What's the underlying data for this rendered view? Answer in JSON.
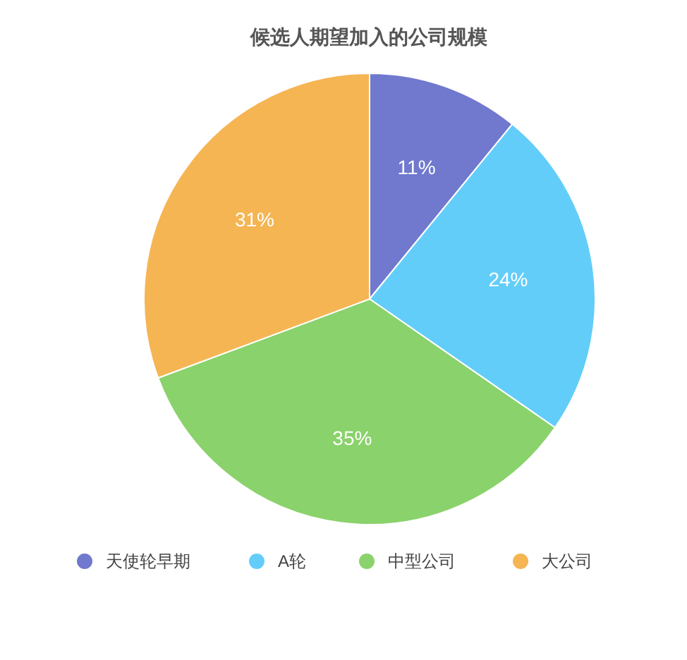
{
  "chart_data": {
    "type": "pie",
    "title": "候选人期望加入的公司规模",
    "categories": [
      "天使轮早期",
      "A轮",
      "中型公司",
      "大公司"
    ],
    "values": [
      11,
      24,
      35,
      31
    ],
    "colors": [
      "#7079cd",
      "#63cdf9",
      "#8ad26b",
      "#f5b553"
    ],
    "value_labels": [
      "11%",
      "24%",
      "35%",
      "31%"
    ],
    "legend": "bottom"
  }
}
